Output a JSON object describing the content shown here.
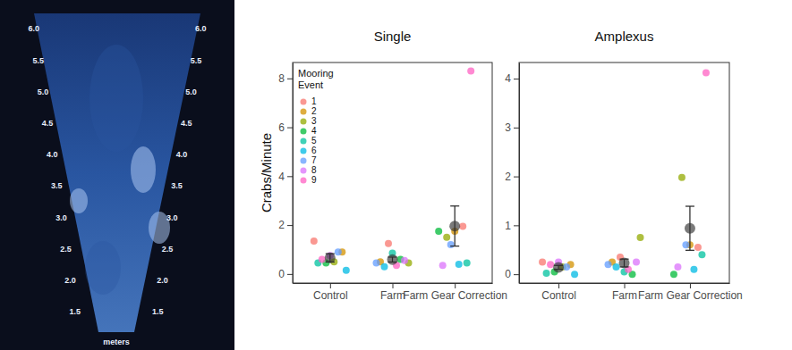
{
  "sonar_image": {
    "range_labels": [
      {
        "value": 6,
        "label": "6.0"
      },
      {
        "value": 5.5,
        "label": "5.5"
      },
      {
        "value": 5,
        "label": "5.0"
      },
      {
        "value": 4.5,
        "label": "4.5"
      },
      {
        "value": 4,
        "label": "4.0"
      },
      {
        "value": 3.5,
        "label": "3.5"
      },
      {
        "value": 3,
        "label": "3.0"
      },
      {
        "value": 2.5,
        "label": "2.5"
      },
      {
        "value": 2,
        "label": "2.0"
      },
      {
        "value": 1.5,
        "label": "1.5"
      }
    ],
    "unit": "meters"
  },
  "chart_data": [
    {
      "type": "scatter",
      "title": "Single",
      "y_label": "Crabs/Minute",
      "categories": [
        "Control",
        "Farm",
        "Farm Gear Correction"
      ],
      "ylim": [
        -0.37,
        8.65
      ],
      "yticks": [
        0,
        2,
        4,
        6,
        8
      ],
      "grid": false,
      "legend": "top-left",
      "legend_title": "Mooring Event",
      "series": [
        {
          "name": "1",
          "color": "#F8766D",
          "values": [
            1.35,
            1.25,
            1.95
          ]
        },
        {
          "name": "2",
          "color": "#D39200",
          "values": [
            0.9,
            0.5,
            1.75
          ]
        },
        {
          "name": "3",
          "color": "#93AA00",
          "values": [
            0.5,
            0.45,
            1.5
          ]
        },
        {
          "name": "4",
          "color": "#00BA38",
          "values": [
            0.45,
            0.6,
            1.75
          ]
        },
        {
          "name": "5",
          "color": "#00C19F",
          "values": [
            0.45,
            0.85,
            0.45
          ]
        },
        {
          "name": "6",
          "color": "#00B9E3",
          "values": [
            0.15,
            0.3,
            0.4
          ]
        },
        {
          "name": "7",
          "color": "#619CFF",
          "values": [
            0.9,
            0.45,
            1.2
          ]
        },
        {
          "name": "8",
          "color": "#DB72FB",
          "values": [
            0.75,
            0.55,
            0.35
          ]
        },
        {
          "name": "9",
          "color": "#FF61C3",
          "values": [
            0.6,
            0.35,
            8.3
          ]
        }
      ],
      "means": [
        0.66,
        0.59,
        1.96
      ],
      "errors": [
        0.17,
        0.1,
        0.82
      ]
    },
    {
      "type": "scatter",
      "title": "Amplexus",
      "categories": [
        "Control",
        "Farm",
        "Farm Gear Correction"
      ],
      "ylim": [
        -0.18,
        4.33
      ],
      "yticks": [
        0,
        1,
        2,
        3,
        4
      ],
      "grid": false,
      "series": [
        {
          "name": "1",
          "color": "#F8766D",
          "values": [
            0.25,
            0.35,
            0.55
          ]
        },
        {
          "name": "2",
          "color": "#D39200",
          "values": [
            0.2,
            0.25,
            0.6
          ]
        },
        {
          "name": "3",
          "color": "#93AA00",
          "values": [
            0.15,
            0.75,
            1.98
          ]
        },
        {
          "name": "4",
          "color": "#00BA38",
          "values": [
            0.05,
            0.0,
            0.0
          ]
        },
        {
          "name": "5",
          "color": "#00C19F",
          "values": [
            0.02,
            0.05,
            0.4
          ]
        },
        {
          "name": "6",
          "color": "#00B9E3",
          "values": [
            0.0,
            0.15,
            0.1
          ]
        },
        {
          "name": "7",
          "color": "#619CFF",
          "values": [
            0.15,
            0.2,
            0.6
          ]
        },
        {
          "name": "8",
          "color": "#DB72FB",
          "values": [
            0.25,
            0.25,
            0.15
          ]
        },
        {
          "name": "9",
          "color": "#FF61C3",
          "values": [
            0.2,
            0.1,
            4.12
          ]
        }
      ],
      "means": [
        0.14,
        0.23,
        0.94
      ],
      "errors": [
        0.04,
        0.08,
        0.45
      ]
    }
  ]
}
